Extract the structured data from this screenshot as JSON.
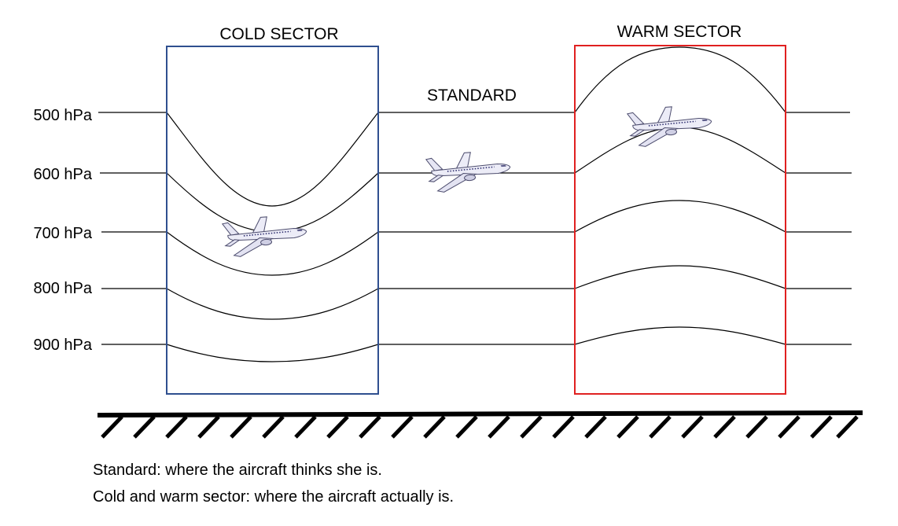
{
  "sectors": {
    "cold": {
      "label": "COLD SECTOR",
      "border_color": "#2f4f8f"
    },
    "standard": {
      "label": "STANDARD"
    },
    "warm": {
      "label": "WARM SECTOR",
      "border_color": "#e02020"
    }
  },
  "pressure_levels": [
    {
      "label": "500 hPa"
    },
    {
      "label": "600 hPa"
    },
    {
      "label": "700 hPa"
    },
    {
      "label": "800 hPa"
    },
    {
      "label": "900 hPa"
    }
  ],
  "airplanes": [
    {
      "location": "cold-sector",
      "icon": "airplane-icon"
    },
    {
      "location": "standard",
      "icon": "airplane-icon"
    },
    {
      "location": "warm-sector",
      "icon": "airplane-icon"
    }
  ],
  "ground": {
    "icon": "hatched-ground"
  },
  "captions": {
    "line1": "Standard: where the aircraft thinks she is.",
    "line2": "Cold and warm sector: where the aircraft actually is."
  }
}
